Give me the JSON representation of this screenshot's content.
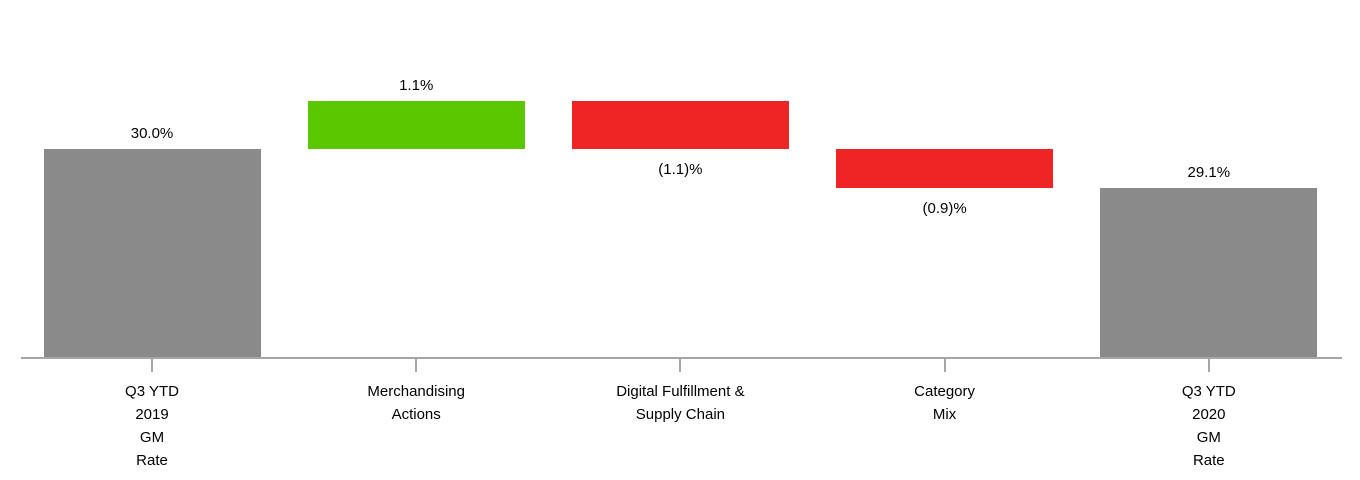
{
  "chart_data": {
    "type": "bar",
    "subtype": "waterfall",
    "title": "",
    "xlabel": "",
    "ylabel": "",
    "unit": "%",
    "grid": false,
    "legend": false,
    "ylim": [
      25.2,
      33.2
    ],
    "axis_color": "#a6a6a6",
    "text_color": "#000000",
    "categories": [
      {
        "label": "Q3 YTD 2019 GM Rate",
        "label_lines": [
          "Q3 YTD",
          "2019",
          "GM",
          "Rate"
        ],
        "value": 30.0,
        "display": "30.0%",
        "kind": "total",
        "color": "#8a8a8a",
        "value_label_position": "above"
      },
      {
        "label": "Merchandising Actions",
        "label_lines": [
          "Merchandising",
          "Actions"
        ],
        "value": 1.1,
        "display": "1.1%",
        "kind": "increase",
        "color": "#5bc701",
        "value_label_position": "above"
      },
      {
        "label": "Digital Fulfillment & Supply Chain",
        "label_lines": [
          "Digital Fulfillment &",
          "Supply Chain"
        ],
        "value": -1.1,
        "display": "(1.1)%",
        "kind": "decrease",
        "color": "#ee2524",
        "value_label_position": "below"
      },
      {
        "label": "Category Mix",
        "label_lines": [
          "Category",
          "Mix"
        ],
        "value": -0.9,
        "display": "(0.9)%",
        "kind": "decrease",
        "color": "#ee2524",
        "value_label_position": "below"
      },
      {
        "label": "Q3 YTD 2020 GM Rate",
        "label_lines": [
          "Q3 YTD",
          "2020",
          "GM",
          "Rate"
        ],
        "value": 29.1,
        "display": "29.1%",
        "kind": "total",
        "color": "#8a8a8a",
        "value_label_position": "above"
      }
    ]
  }
}
